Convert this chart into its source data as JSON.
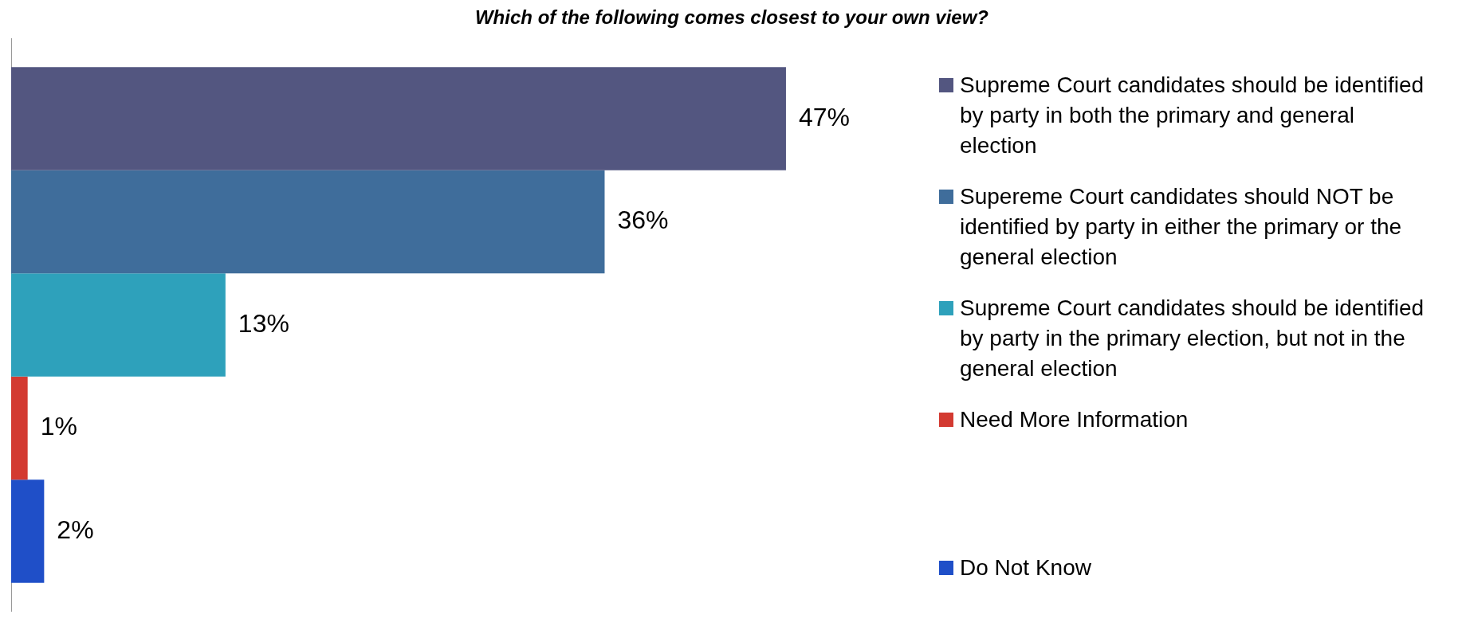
{
  "chart_data": {
    "type": "bar",
    "orientation": "horizontal",
    "title": "Which of the following comes closest to your own view?",
    "categories": [
      null
    ],
    "legend": "right",
    "grid": false,
    "series": [
      {
        "name": "Supreme Court candidates should be identified by party in both the primary and general election",
        "color": "#535680",
        "values": [
          47
        ],
        "value_labels": [
          "47%"
        ]
      },
      {
        "name": "Supereme Court candidates should NOT be identified by party in either the primary or the general election",
        "color": "#3f6d9b",
        "values": [
          36
        ],
        "value_labels": [
          "36%"
        ]
      },
      {
        "name": "Supreme Court candidates should be identified by party in the primary election, but not in the general election",
        "color": "#2ea1bb",
        "values": [
          13
        ],
        "value_labels": [
          "13%"
        ]
      },
      {
        "name": "Need More Information",
        "color": "#d33a31",
        "values": [
          1
        ],
        "value_labels": [
          "1%"
        ]
      },
      {
        "name": "Do Not Know",
        "color": "#1f4fc8",
        "values": [
          2
        ],
        "value_labels": [
          "2%"
        ]
      }
    ]
  }
}
